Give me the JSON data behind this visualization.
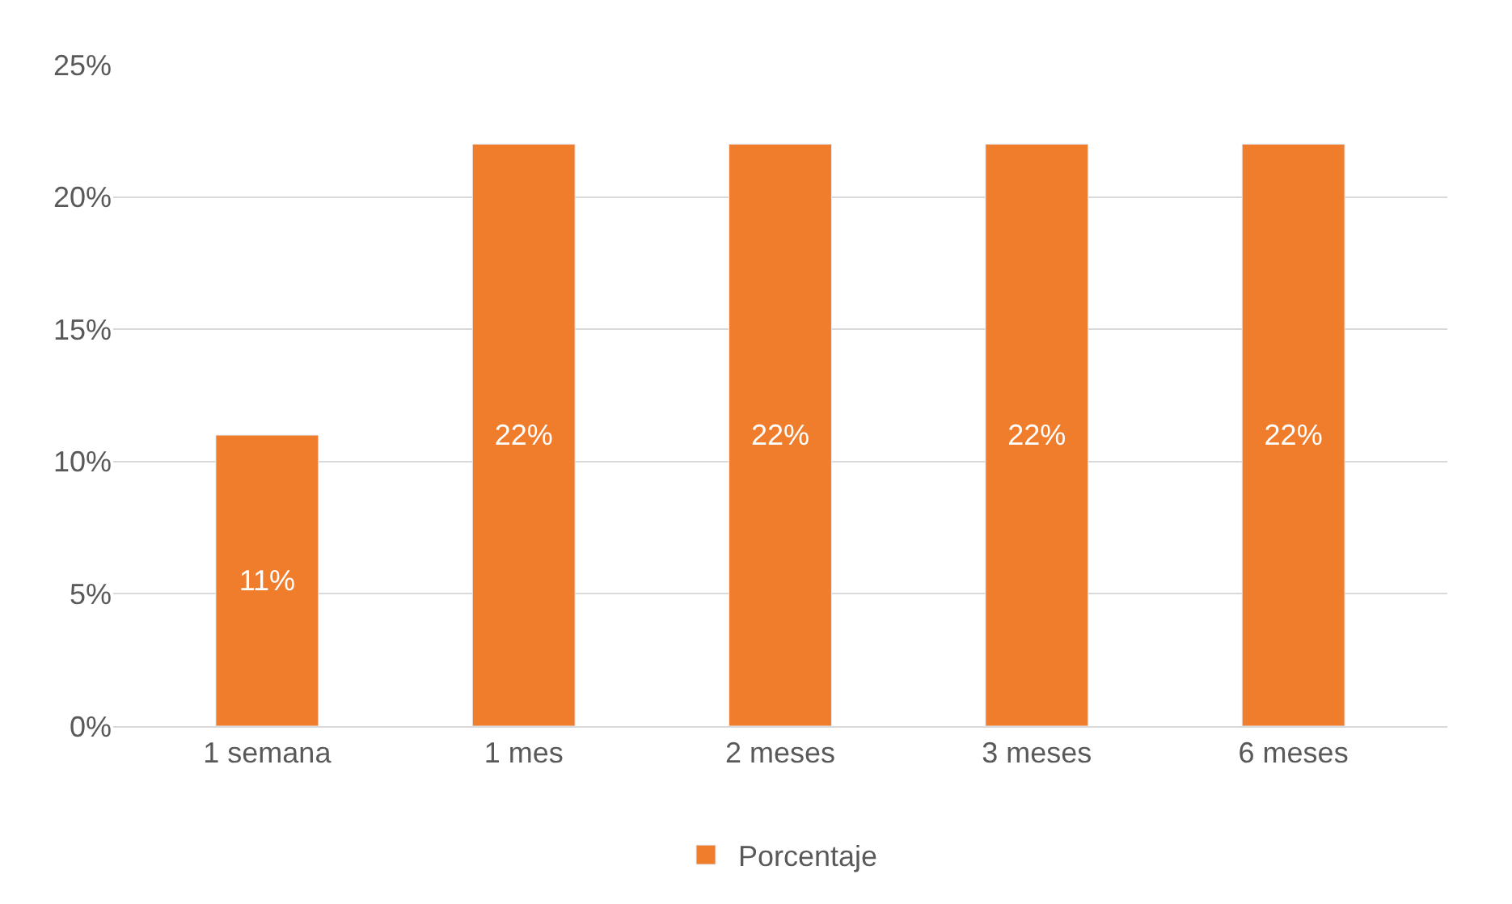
{
  "chart_data": {
    "type": "bar",
    "categories": [
      "1 semana",
      "1 mes",
      "2 meses",
      "3 meses",
      "6 meses"
    ],
    "series": [
      {
        "name": "Porcentaje",
        "color": "#f07d2c",
        "values": [
          11,
          22,
          22,
          22,
          22
        ],
        "value_labels": [
          "11%",
          "22%",
          "22%",
          "22%",
          "22%"
        ]
      }
    ],
    "ylim": [
      0,
      25
    ],
    "yticks": [
      {
        "value": 0,
        "label": "0%"
      },
      {
        "value": 5,
        "label": "5%"
      },
      {
        "value": 10,
        "label": "10%"
      },
      {
        "value": 15,
        "label": "15%"
      },
      {
        "value": 20,
        "label": "20%"
      },
      {
        "value": 25,
        "label": "25%"
      }
    ],
    "grid": "y",
    "legend": "bottom"
  }
}
